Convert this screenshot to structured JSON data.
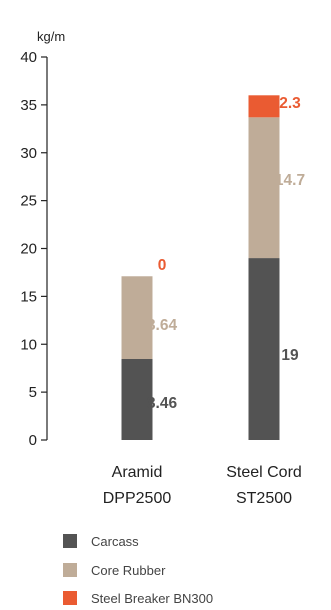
{
  "chart_data": {
    "type": "bar",
    "stacked": true,
    "title": "",
    "unit_label": "kg/m",
    "ylim": [
      0,
      40
    ],
    "yticks": [
      0,
      5,
      10,
      15,
      20,
      25,
      30,
      35,
      40
    ],
    "grid": false,
    "legend_position": "bottom-left",
    "categories": [
      {
        "line1": "Aramid",
        "line2": "DPP2500"
      },
      {
        "line1": "Steel Cord",
        "line2": "ST2500"
      }
    ],
    "series": [
      {
        "name": "Carcass",
        "color": "#535353",
        "label_color": "#535353",
        "values": [
          8.46,
          19
        ],
        "labels": [
          "8.46",
          "19"
        ]
      },
      {
        "name": "Core Rubber",
        "color": "#bfac98",
        "label_color": "#bfac98",
        "values": [
          8.64,
          14.7
        ],
        "labels": [
          "8.64",
          "14.7"
        ]
      },
      {
        "name": "Steel Breaker BN300",
        "color": "#ea5b32",
        "label_color": "#ea5b32",
        "values": [
          0,
          2.3
        ],
        "labels": [
          "0",
          "2.3"
        ]
      }
    ]
  }
}
